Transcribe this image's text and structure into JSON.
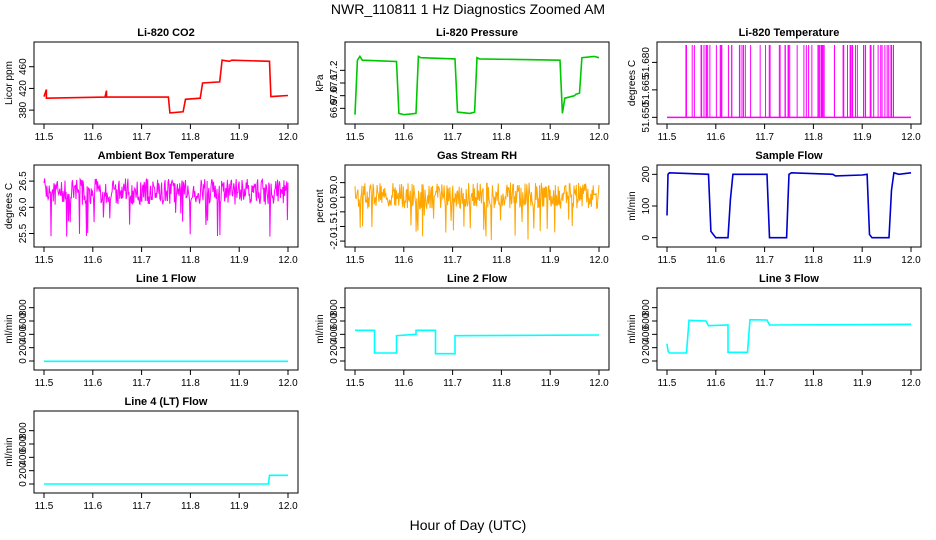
{
  "figure": {
    "title": "NWR_110811  1 Hz Diagnostics Zoomed AM",
    "xlabel": "Hour of Day (UTC)"
  },
  "chart_data": [
    {
      "type": "line",
      "title": "Li-820 CO2",
      "ylabel": "Licor ppm",
      "color": "#ff0000",
      "xlim": [
        11.5,
        12.0
      ],
      "ylim": [
        360,
        500
      ],
      "xticks": [
        "11.5",
        "11.6",
        "11.7",
        "11.8",
        "11.9",
        "12.0"
      ],
      "yticks": [
        {
          "v": 380,
          "label": "380"
        },
        {
          "v": 420,
          "label": "420"
        },
        {
          "v": 460,
          "label": "460"
        }
      ],
      "series": [
        {
          "x": [
            11.5,
            11.505,
            11.505,
            11.625,
            11.628,
            11.628,
            11.755,
            11.758,
            11.785,
            11.79,
            11.82,
            11.825,
            11.86,
            11.865,
            11.88,
            11.885,
            11.962,
            11.965,
            12.0
          ],
          "y": [
            405,
            418,
            402,
            404,
            416,
            404,
            404,
            375,
            377,
            400,
            402,
            430,
            432,
            472,
            470,
            472,
            470,
            405,
            407
          ]
        }
      ]
    },
    {
      "type": "line",
      "title": "Li-820 Pressure",
      "ylabel": "kPa",
      "color": "#00c800",
      "xlim": [
        11.5,
        12.0
      ],
      "ylim": [
        66.8,
        67.4
      ],
      "xticks": [
        "11.5",
        "11.6",
        "11.7",
        "11.8",
        "11.9",
        "12.0"
      ],
      "yticks": [
        {
          "v": 66.9,
          "label": "66.9"
        },
        {
          "v": 67.0,
          "label": "67.0"
        },
        {
          "v": 67.1,
          "label": "67.1"
        },
        {
          "v": 67.2,
          "label": "67.2"
        }
      ],
      "series": [
        {
          "x": [
            11.5,
            11.505,
            11.51,
            11.515,
            11.585,
            11.59,
            11.6,
            11.625,
            11.63,
            11.635,
            11.705,
            11.71,
            11.735,
            11.745,
            11.75,
            11.755,
            11.92,
            11.925,
            11.93,
            11.95,
            11.952,
            11.96,
            11.965,
            11.99,
            12.0
          ],
          "y": [
            66.85,
            67.28,
            67.31,
            67.28,
            67.27,
            66.86,
            66.85,
            66.86,
            67.31,
            67.3,
            67.29,
            66.87,
            66.86,
            66.87,
            67.3,
            67.29,
            67.28,
            66.86,
            66.98,
            67.0,
            67.01,
            67.02,
            67.3,
            67.31,
            67.3
          ]
        }
      ]
    },
    {
      "type": "line",
      "title": "Li-820 Temperature",
      "ylabel": "degrees C",
      "color": "#ff00ff",
      "xlim": [
        11.5,
        12.0
      ],
      "ylim": [
        51.648,
        51.6895
      ],
      "xticks": [
        "11.5",
        "11.6",
        "11.7",
        "11.8",
        "11.9",
        "12.0"
      ],
      "yticks": [
        {
          "v": 51.65,
          "label": "51.650"
        },
        {
          "v": 51.665,
          "label": "51.665"
        },
        {
          "v": 51.68,
          "label": "51.680"
        }
      ],
      "segments": {
        "base": 51.65,
        "top": 51.6895,
        "xstart": 11.5,
        "xend": 12.0
      }
    },
    {
      "type": "line",
      "title": "Ambient Box Temperature",
      "ylabel": "degrees C",
      "color": "#ff00ff",
      "xlim": [
        11.5,
        12.0
      ],
      "ylim": [
        25.3,
        26.75
      ],
      "xticks": [
        "11.5",
        "11.6",
        "11.7",
        "11.8",
        "11.9",
        "12.0"
      ],
      "yticks": [
        {
          "v": 25.5,
          "label": "25.5"
        },
        {
          "v": 26.0,
          "label": "26.0"
        },
        {
          "v": 26.5,
          "label": "26.5"
        }
      ],
      "noise": {
        "center": 26.3,
        "spread": 0.25,
        "low": 25.4,
        "high": 26.7
      }
    },
    {
      "type": "line",
      "title": "Gas Stream RH",
      "ylabel": "percent",
      "color": "#ffa500",
      "xlim": [
        11.5,
        12.0
      ],
      "ylim": [
        -2.1,
        0.5
      ],
      "xticks": [
        "11.5",
        "11.6",
        "11.7",
        "11.8",
        "11.9",
        "12.0"
      ],
      "yticks": [
        {
          "v": -2.0,
          "label": "-2.0"
        },
        {
          "v": -1.5,
          "label": "-1.5"
        },
        {
          "v": -1.0,
          "label": "-1.0"
        },
        {
          "v": -0.5,
          "label": "-0.5"
        },
        {
          "v": 0.0,
          "label": "0.0"
        }
      ],
      "noise": {
        "center": -0.45,
        "spread": 0.45,
        "low": -2.0,
        "high": 0.35
      }
    },
    {
      "type": "line",
      "title": "Sample Flow",
      "ylabel": "ml/min",
      "color": "#0000cd",
      "xlim": [
        11.5,
        12.0
      ],
      "ylim": [
        -20,
        220
      ],
      "xticks": [
        "11.5",
        "11.6",
        "11.7",
        "11.8",
        "11.9",
        "12.0"
      ],
      "yticks": [
        {
          "v": 0,
          "label": "0"
        },
        {
          "v": 100,
          "label": "100"
        },
        {
          "v": 200,
          "label": "200"
        }
      ],
      "series": [
        {
          "x": [
            11.5,
            11.502,
            11.505,
            11.585,
            11.59,
            11.6,
            11.625,
            11.63,
            11.635,
            11.705,
            11.71,
            11.745,
            11.748,
            11.75,
            11.755,
            11.84,
            11.845,
            11.9,
            11.91,
            11.915,
            11.92,
            11.955,
            11.96,
            11.965,
            11.975,
            12.0
          ],
          "y": [
            70,
            200,
            205,
            200,
            20,
            0,
            0,
            120,
            200,
            200,
            0,
            0,
            120,
            200,
            205,
            200,
            195,
            198,
            200,
            10,
            0,
            0,
            150,
            205,
            200,
            205
          ]
        }
      ]
    },
    {
      "type": "line",
      "title": "Line 1 Flow",
      "ylabel": "ml/min",
      "color": "#00ffff",
      "xlim": [
        11.5,
        12.0
      ],
      "ylim": [
        -90,
        1050
      ],
      "xticks": [
        "11.5",
        "11.6",
        "11.7",
        "11.8",
        "11.9",
        "12.0"
      ],
      "yticks": [
        {
          "v": 0,
          "label": "0"
        },
        {
          "v": 200,
          "label": "200"
        },
        {
          "v": 400,
          "label": "400"
        },
        {
          "v": 600,
          "label": "600"
        },
        {
          "v": 800,
          "label": "800"
        }
      ],
      "series": [
        {
          "x": [
            11.5,
            12.0
          ],
          "y": [
            -5,
            -5
          ]
        }
      ]
    },
    {
      "type": "line",
      "title": "Line 2 Flow",
      "ylabel": "ml/min",
      "color": "#00ffff",
      "xlim": [
        11.5,
        12.0
      ],
      "ylim": [
        -90,
        1050
      ],
      "xticks": [
        "11.5",
        "11.6",
        "11.7",
        "11.8",
        "11.9",
        "12.0"
      ],
      "yticks": [
        {
          "v": 0,
          "label": "0"
        },
        {
          "v": 200,
          "label": "200"
        },
        {
          "v": 400,
          "label": "400"
        },
        {
          "v": 600,
          "label": "600"
        },
        {
          "v": 800,
          "label": "800"
        }
      ],
      "series": [
        {
          "x": [
            11.5,
            11.54,
            11.54,
            11.585,
            11.585,
            11.625,
            11.625,
            11.665,
            11.665,
            11.705,
            11.705,
            12.0
          ],
          "y": [
            460,
            460,
            120,
            120,
            380,
            400,
            460,
            460,
            110,
            110,
            380,
            390
          ]
        }
      ]
    },
    {
      "type": "line",
      "title": "Line 3 Flow",
      "ylabel": "ml/min",
      "color": "#00ffff",
      "xlim": [
        11.5,
        12.0
      ],
      "ylim": [
        -90,
        1050
      ],
      "xticks": [
        "11.5",
        "11.6",
        "11.7",
        "11.8",
        "11.9",
        "12.0"
      ],
      "yticks": [
        {
          "v": 0,
          "label": "0"
        },
        {
          "v": 200,
          "label": "200"
        },
        {
          "v": 400,
          "label": "400"
        },
        {
          "v": 600,
          "label": "600"
        },
        {
          "v": 800,
          "label": "800"
        }
      ],
      "series": [
        {
          "x": [
            11.5,
            11.502,
            11.505,
            11.54,
            11.545,
            11.58,
            11.585,
            11.625,
            11.625,
            11.665,
            11.67,
            11.705,
            11.71,
            12.0
          ],
          "y": [
            260,
            150,
            120,
            120,
            610,
            600,
            530,
            540,
            130,
            130,
            620,
            615,
            540,
            550
          ]
        }
      ]
    },
    {
      "type": "line",
      "title": "Line 4 (LT) Flow",
      "ylabel": "ml/min",
      "color": "#00ffff",
      "xlim": [
        11.5,
        12.0
      ],
      "ylim": [
        -90,
        1050
      ],
      "xticks": [
        "11.5",
        "11.6",
        "11.7",
        "11.8",
        "11.9",
        "12.0"
      ],
      "yticks": [
        {
          "v": 0,
          "label": "0"
        },
        {
          "v": 200,
          "label": "200"
        },
        {
          "v": 400,
          "label": "400"
        },
        {
          "v": 600,
          "label": "600"
        },
        {
          "v": 800,
          "label": "800"
        }
      ],
      "series": [
        {
          "x": [
            11.5,
            11.96,
            11.962,
            12.0
          ],
          "y": [
            0,
            0,
            130,
            130
          ]
        }
      ]
    }
  ]
}
